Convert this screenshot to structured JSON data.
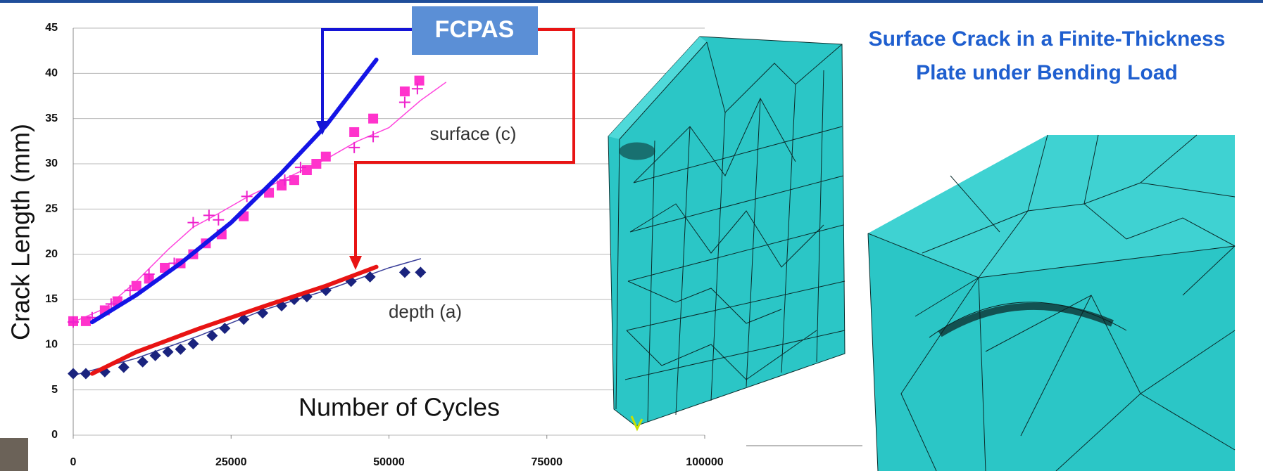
{
  "slide": {
    "title_lines": [
      "Surface Crack in a Finite-Thickness",
      "Plate under Bending Load"
    ]
  },
  "chart_data": {
    "type": "line",
    "ylabel": "Crack Length (mm)",
    "xlabel": "Number of Cycles",
    "annotations": {
      "model": "FCPAS",
      "surface": "surface (c)",
      "depth": "depth (a)"
    },
    "xlim": [
      0,
      100000
    ],
    "xticks": [
      0,
      25000,
      50000,
      75000,
      100000
    ],
    "ylim": [
      0,
      45
    ],
    "yticks": [
      0,
      5,
      10,
      15,
      20,
      25,
      30,
      35,
      40,
      45
    ],
    "grid": true,
    "series": [
      {
        "color": "#ff44dd",
        "marker": "none",
        "line_width": 1.5,
        "x": [
          0,
          5000,
          10000,
          15000,
          19000,
          23000,
          28000,
          34000,
          40000,
          45000,
          50000,
          55000,
          59000
        ],
        "values": [
          12.5,
          14,
          17,
          20.5,
          23,
          24.5,
          26.5,
          28.5,
          30.5,
          32.5,
          34,
          37,
          39
        ]
      },
      {
        "color": "#ff33cc",
        "marker": "square",
        "line_width": 0,
        "x": [
          0,
          2000,
          5000,
          7000,
          10000,
          12000,
          14500,
          17000,
          19000,
          21000,
          23500,
          27000,
          31000,
          33000,
          35000,
          37000,
          38500,
          40000,
          44500,
          47500,
          52500,
          54800
        ],
        "values": [
          12.6,
          12.6,
          13.8,
          14.8,
          16.5,
          17.3,
          18.5,
          19,
          20,
          21.2,
          22.2,
          24.2,
          26.8,
          27.6,
          28.2,
          29.3,
          30,
          30.8,
          33.5,
          35,
          38,
          39.2
        ]
      },
      {
        "color": "#ee22cc",
        "marker": "plus",
        "line_width": 0,
        "x": [
          0,
          3000,
          6000,
          9000,
          12000,
          16000,
          19000,
          21500,
          23000,
          27500,
          33500,
          36000,
          44500,
          47500,
          52500,
          54500
        ],
        "values": [
          12.5,
          13,
          14.5,
          16,
          17.8,
          19,
          23.5,
          24.3,
          23.8,
          26.4,
          28.2,
          29.6,
          31.8,
          33,
          36.8,
          38.3
        ]
      },
      {
        "color": "#3a3f9a",
        "marker": "none",
        "line_width": 1.5,
        "x": [
          0,
          10000,
          20000,
          30000,
          40000,
          50000,
          55000
        ],
        "values": [
          6.6,
          8.5,
          11,
          13.8,
          16,
          18.5,
          19.5
        ]
      },
      {
        "color": "#1a237e",
        "marker": "diamond",
        "line_width": 0,
        "x": [
          0,
          2000,
          5000,
          8000,
          11000,
          13000,
          15000,
          17000,
          19000,
          22000,
          24000,
          27000,
          30000,
          33000,
          35000,
          37000,
          40000,
          44000,
          47000,
          52500,
          55000
        ],
        "values": [
          6.8,
          6.8,
          7,
          7.5,
          8.1,
          8.8,
          9.2,
          9.5,
          10.1,
          11,
          11.8,
          12.8,
          13.5,
          14.3,
          15,
          15.3,
          16,
          17,
          17.5,
          18,
          18
        ]
      },
      {
        "color": "#1414e6",
        "marker": "none",
        "line_width": 6,
        "x": [
          3000,
          10000,
          17000,
          25000,
          33000,
          40000,
          48000
        ],
        "values": [
          12.5,
          15.5,
          19,
          23.5,
          29,
          34.2,
          41.5
        ]
      },
      {
        "color": "#e81414",
        "marker": "none",
        "line_width": 6,
        "x": [
          3000,
          10000,
          20000,
          30000,
          40000,
          48000
        ],
        "values": [
          6.8,
          9.2,
          11.8,
          14.2,
          16.5,
          18.6
        ]
      }
    ]
  }
}
